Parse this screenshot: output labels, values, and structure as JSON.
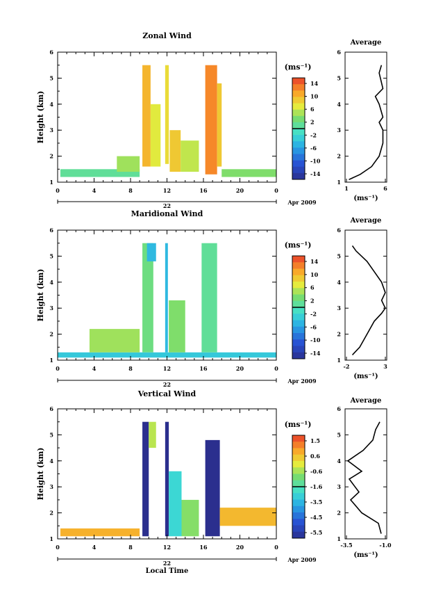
{
  "panels": [
    {
      "title": "Zonal Wind",
      "ylabel": "Height (km)",
      "yticks": [
        "1",
        "2",
        "3",
        "4",
        "5",
        "6"
      ],
      "xticks": [
        "0",
        "4",
        "8",
        "12",
        "16",
        "20",
        "0"
      ],
      "date_day": "22",
      "date_month": "Apr 2009",
      "cb_unit": "(ms⁻¹)",
      "cb_ticks": [
        "14",
        "10",
        "6",
        "2",
        "-2",
        "-6",
        "-10",
        "-14"
      ],
      "avg_title": "Average",
      "avg_yticks": [
        "1",
        "2",
        "3",
        "4",
        "5",
        "6"
      ],
      "avg_xticks": [
        "1",
        "6"
      ],
      "avg_unit": "(ms⁻¹)"
    },
    {
      "title": "Maridional Wind",
      "ylabel": "Height (km)",
      "yticks": [
        "1",
        "2",
        "3",
        "4",
        "5",
        "6"
      ],
      "xticks": [
        "0",
        "4",
        "8",
        "12",
        "16",
        "20",
        "0"
      ],
      "date_day": "22",
      "date_month": "Apr 2009",
      "cb_unit": "(ms⁻¹)",
      "cb_ticks": [
        "14",
        "10",
        "6",
        "2",
        "-2",
        "-6",
        "-10",
        "-14"
      ],
      "avg_title": "Average",
      "avg_yticks": [
        "1",
        "2",
        "3",
        "4",
        "5",
        "6"
      ],
      "avg_xticks": [
        "-2",
        "3"
      ],
      "avg_unit": "(ms⁻¹)"
    },
    {
      "title": "Vertical Wind",
      "ylabel": "Height (km)",
      "yticks": [
        "1",
        "2",
        "3",
        "4",
        "5",
        "6"
      ],
      "xticks": [
        "0",
        "4",
        "8",
        "12",
        "16",
        "20",
        "0"
      ],
      "date_day": "22",
      "date_month": "Apr 2009",
      "xlabel": "Local Time",
      "cb_unit": "(ms⁻¹)",
      "cb_ticks": [
        "1.5",
        "0.6",
        "-0.6",
        "-1.6",
        "-3.5",
        "-4.5",
        "-5.5"
      ],
      "avg_title": "Average",
      "avg_yticks": [
        "1",
        "2",
        "3",
        "4",
        "5",
        "6"
      ],
      "avg_xticks": [
        "-3.5",
        "-1.0"
      ],
      "avg_unit": "(ms⁻¹)"
    }
  ],
  "chart_data": [
    {
      "type": "heatmap",
      "title": "Zonal Wind",
      "xlabel": "",
      "ylabel": "Height (km)",
      "xlim": [
        0,
        24
      ],
      "ylim": [
        1,
        6
      ],
      "colorbar_range": [
        -14,
        14
      ],
      "colors": {
        "low": "#2b2f8e",
        "mid": "#40e0d0",
        "high": "#e83b2b"
      },
      "cells": [
        {
          "t": [
            9.3,
            10.2
          ],
          "h": [
            1.6,
            5.5
          ],
          "v": 9
        },
        {
          "t": [
            10.2,
            11.3
          ],
          "h": [
            1.6,
            4.0
          ],
          "v": 6
        },
        {
          "t": [
            11.8,
            12.2
          ],
          "h": [
            1.7,
            5.5
          ],
          "v": 7
        },
        {
          "t": [
            12.3,
            13.5
          ],
          "h": [
            1.4,
            3.0
          ],
          "v": 8
        },
        {
          "t": [
            13.5,
            15.5
          ],
          "h": [
            1.4,
            2.6
          ],
          "v": 5
        },
        {
          "t": [
            16.2,
            17.5
          ],
          "h": [
            1.3,
            5.5
          ],
          "v": 11
        },
        {
          "t": [
            17.5,
            18.0
          ],
          "h": [
            1.6,
            4.8
          ],
          "v": 8
        },
        {
          "t": [
            0.3,
            9.0
          ],
          "h": [
            1.2,
            1.5
          ],
          "v": 1
        },
        {
          "t": [
            6.5,
            9.0
          ],
          "h": [
            1.4,
            2.0
          ],
          "v": 4
        },
        {
          "t": [
            18.0,
            24.0
          ],
          "h": [
            1.2,
            1.5
          ],
          "v": 3
        }
      ],
      "average": {
        "x": [
          1.5,
          3,
          4.5,
          5.5,
          6,
          6,
          5.5,
          6,
          5.5,
          5,
          6,
          5.5,
          5.8
        ],
        "y": [
          1.1,
          1.3,
          1.6,
          2.0,
          2.5,
          3.0,
          3.3,
          3.5,
          4.0,
          4.3,
          4.6,
          5.2,
          5.5
        ],
        "xlim": [
          1,
          6.5
        ]
      }
    },
    {
      "type": "heatmap",
      "title": "Maridional Wind",
      "xlabel": "",
      "ylabel": "Height (km)",
      "xlim": [
        0,
        24
      ],
      "ylim": [
        1,
        6
      ],
      "colorbar_range": [
        -14,
        14
      ],
      "colors": {
        "low": "#2b2f8e",
        "mid": "#40e0d0",
        "high": "#e83b2b"
      },
      "cells": [
        {
          "t": [
            0.0,
            24.0
          ],
          "h": [
            1.1,
            1.3
          ],
          "v": -3
        },
        {
          "t": [
            9.3,
            10.5
          ],
          "h": [
            1.3,
            5.5
          ],
          "v": 2
        },
        {
          "t": [
            9.8,
            10.8
          ],
          "h": [
            4.8,
            5.5
          ],
          "v": -4
        },
        {
          "t": [
            11.8,
            12.1
          ],
          "h": [
            1.3,
            5.5
          ],
          "v": -4
        },
        {
          "t": [
            12.2,
            14.0
          ],
          "h": [
            1.3,
            3.3
          ],
          "v": 3
        },
        {
          "t": [
            15.8,
            17.5
          ],
          "h": [
            1.3,
            5.5
          ],
          "v": 1
        },
        {
          "t": [
            3.5,
            9.0
          ],
          "h": [
            1.3,
            2.2
          ],
          "v": 4
        }
      ],
      "average": {
        "x": [
          -1.5,
          -0.5,
          0.5,
          1.5,
          2.5,
          3,
          2.5,
          3,
          2.5,
          1.5,
          0.5,
          -1,
          -1.5
        ],
        "y": [
          1.2,
          1.5,
          2.0,
          2.5,
          2.8,
          3.0,
          3.3,
          3.6,
          4.0,
          4.4,
          4.8,
          5.2,
          5.4
        ],
        "xlim": [
          -2.5,
          3.2
        ]
      }
    },
    {
      "type": "heatmap",
      "title": "Vertical Wind",
      "xlabel": "Local Time",
      "ylabel": "Height (km)",
      "xlim": [
        0,
        24
      ],
      "ylim": [
        1,
        6
      ],
      "colorbar_range": [
        -5.5,
        1.5
      ],
      "colors": {
        "low": "#2b2f8e",
        "mid": "#40e0d0",
        "high": "#e83b2b"
      },
      "cells": [
        {
          "t": [
            0.3,
            9.0
          ],
          "h": [
            1.1,
            1.4
          ],
          "v": 0.3
        },
        {
          "t": [
            9.3,
            10.0
          ],
          "h": [
            1.1,
            5.5
          ],
          "v": -5.5
        },
        {
          "t": [
            10.0,
            10.8
          ],
          "h": [
            4.5,
            5.5
          ],
          "v": -0.8
        },
        {
          "t": [
            11.8,
            12.2
          ],
          "h": [
            1.1,
            5.5
          ],
          "v": -5.5
        },
        {
          "t": [
            12.2,
            13.6
          ],
          "h": [
            1.1,
            3.6
          ],
          "v": -2.5
        },
        {
          "t": [
            13.6,
            15.5
          ],
          "h": [
            1.1,
            2.5
          ],
          "v": -1.2
        },
        {
          "t": [
            16.2,
            17.8
          ],
          "h": [
            1.1,
            4.8
          ],
          "v": -5.5
        },
        {
          "t": [
            17.8,
            24.0
          ],
          "h": [
            1.5,
            2.2
          ],
          "v": 0.2
        }
      ],
      "average": {
        "x": [
          -1.2,
          -1.4,
          -2.6,
          -3.4,
          -2.8,
          -3.5,
          -2.6,
          -3.6,
          -2.5,
          -1.8,
          -1.6,
          -1.3
        ],
        "y": [
          1.2,
          1.6,
          2.0,
          2.5,
          2.8,
          3.3,
          3.6,
          4.0,
          4.4,
          4.8,
          5.2,
          5.5
        ],
        "xlim": [
          -3.8,
          -0.8
        ]
      }
    }
  ]
}
